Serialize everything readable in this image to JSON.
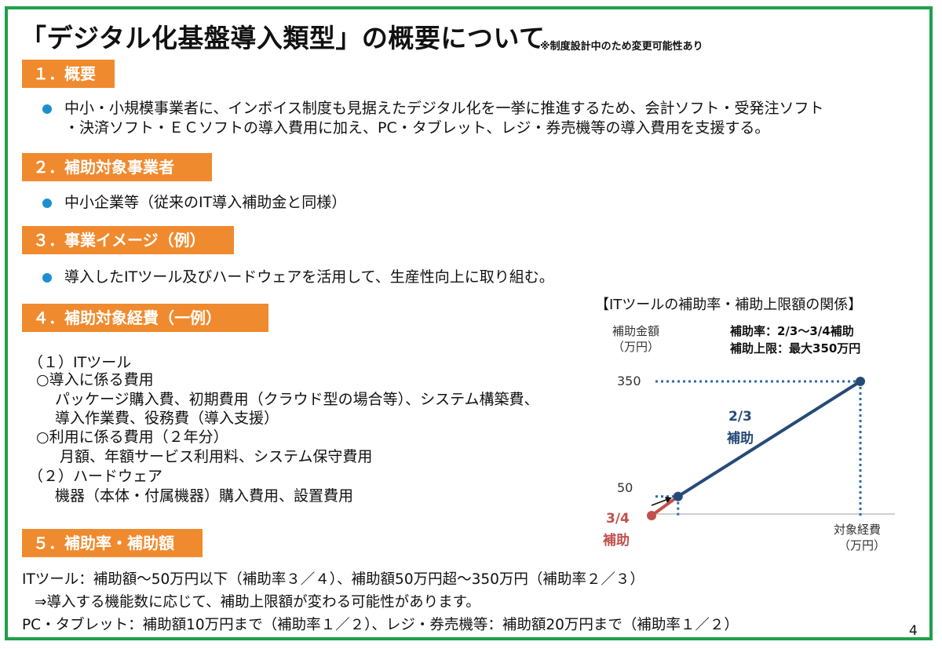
{
  "title": "「デジタル化基盤導入類型」の概要について",
  "note": "※制度設計中のため変更可能性あり",
  "sections": {
    "s1": {
      "heading": "１．概要",
      "lines": [
        "中小・小規模事業者に、インボイス制度も見据えたデジタル化を一挙に推進するため、会計ソフト・受発注ソフト",
        "・決済ソフト・ＥＣソフトの導入費用に加え、PC・タブレット、レジ・券売機等の導入費用を支援する。"
      ]
    },
    "s2": {
      "heading": "２．補助対象事業者",
      "line": "中小企業等（従来のIT導入補助金と同様）"
    },
    "s3": {
      "heading": "３．事業イメージ（例）",
      "line": "導入したITツール及びハードウェアを活用して、生産性向上に取り組む。"
    },
    "s4": {
      "heading": "４．補助対象経費（一例）",
      "lines": [
        "（１）ITツール",
        "○導入に係る費用",
        "パッケージ購入費、初期費用（クラウド型の場合等）、システム構築費、",
        "導入作業費、役務費（導入支援）",
        "○利用に係る費用（２年分）",
        "月額、年額サービス利用料、システム保守費用",
        "（２）ハードウェア",
        "機器（本体・付属機器）購入費用、設置費用"
      ]
    },
    "s5": {
      "heading": "５．補助率・補助額",
      "lines": [
        "ITツール：補助額～50万円以下（補助率３／４）、補助額50万円超～350万円（補助率２／３）",
        "⇒導入する機能数に応じて、補助上限額が変わる可能性があります。",
        "PC・タブレット：補助額10万円まで（補助率１／２）、レジ・券売機等：補助額20万円まで（補助率１／２）"
      ]
    }
  },
  "chart_data": {
    "type": "line",
    "title": "【ITツールの補助率・補助上限額の関係】",
    "ylabel": [
      "補助金額",
      "（万円）"
    ],
    "xlabel": [
      "対象経費",
      "（万円）"
    ],
    "info": [
      "補助率：2/3～3/4補助",
      "補助上限：最大350万円"
    ],
    "yticks": [
      "350",
      "50"
    ],
    "series": [
      {
        "name": "3/4補助",
        "color": "#c0504d",
        "points": [
          [
            0,
            0
          ],
          [
            66.7,
            50
          ]
        ]
      },
      {
        "name": "2/3補助",
        "color": "#264a78",
        "points": [
          [
            66.7,
            50
          ],
          [
            525,
            350
          ]
        ]
      }
    ],
    "labels": {
      "two_thirds": [
        "2/3",
        "補助"
      ],
      "three_quarters": [
        "3/4",
        "補助"
      ]
    },
    "dotted_color": "#2e6aa5"
  },
  "page_number": "4",
  "colors": {
    "frame": "#1fa04a",
    "section": "#f08a2e",
    "bullet": "#1d8fcf"
  }
}
